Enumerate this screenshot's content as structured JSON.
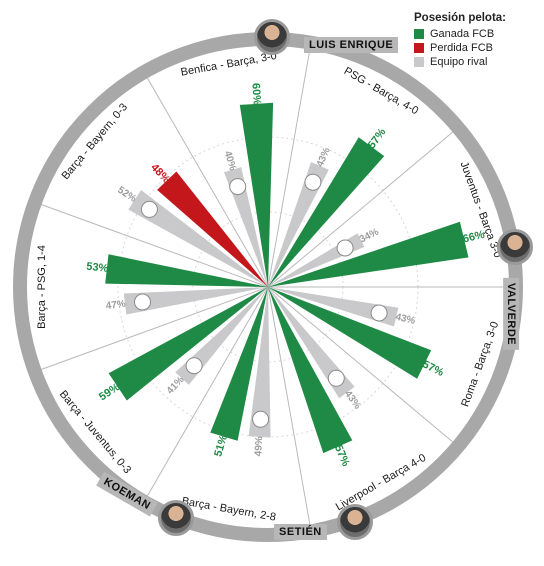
{
  "legend": {
    "title": "Posesión pelota:",
    "items": [
      {
        "label": "Ganada FCB",
        "color": "#1f8a45"
      },
      {
        "label": "Perdida FCB",
        "color": "#c4171c"
      },
      {
        "label": "Equipo rival",
        "color": "#c9c9cb"
      }
    ]
  },
  "coaches": {
    "enrique": "LUIS ENRIQUE",
    "valverde": "VALVERDE",
    "setien": "SETIÉN",
    "koeman": "KOEMAN"
  },
  "colors": {
    "ring": "#a8a8a8",
    "grid": "#cfcfcf",
    "green": "#1f8a45",
    "red": "#c4171c",
    "grey": "#c9c9cb"
  },
  "chart_data": {
    "type": "radial-bar",
    "unit": "%",
    "matches": [
      {
        "label": "Benfica - Barça, 3-0",
        "fcb": 60,
        "rival": 40,
        "fcb_result": "won",
        "rival_logo": "benfica-crest-icon"
      },
      {
        "label": "PSG - Barça, 4-0",
        "fcb": 57,
        "rival": 43,
        "fcb_result": "won",
        "rival_logo": "psg-crest-icon"
      },
      {
        "label": "Juventus - Barça 3-0",
        "fcb": 66,
        "rival": 34,
        "fcb_result": "won",
        "rival_logo": "juventus-crest-icon"
      },
      {
        "label": "Roma - Barça, 3-0",
        "fcb": 57,
        "rival": 43,
        "fcb_result": "won",
        "rival_logo": "roma-crest-icon"
      },
      {
        "label": "Liverpool - Barça 4-0",
        "fcb": 57,
        "rival": 43,
        "fcb_result": "won",
        "rival_logo": "liverpool-crest-icon"
      },
      {
        "label": "Barça - Bayern, 2-8",
        "fcb": 51,
        "rival": 49,
        "fcb_result": "won",
        "rival_logo": "bayern-crest-icon"
      },
      {
        "label": "Barça - Juventus, 0-3",
        "fcb": 59,
        "rival": 41,
        "fcb_result": "won",
        "rival_logo": "juventus-crest-icon"
      },
      {
        "label": "Barça - PSG, 1-4",
        "fcb": 53,
        "rival": 47,
        "fcb_result": "won",
        "rival_logo": "psg-crest-icon"
      },
      {
        "label": "Barça - Bayern, 0-3",
        "fcb": 48,
        "rival": 52,
        "fcb_result": "lost",
        "rival_logo": "bayern-crest-icon"
      }
    ]
  }
}
